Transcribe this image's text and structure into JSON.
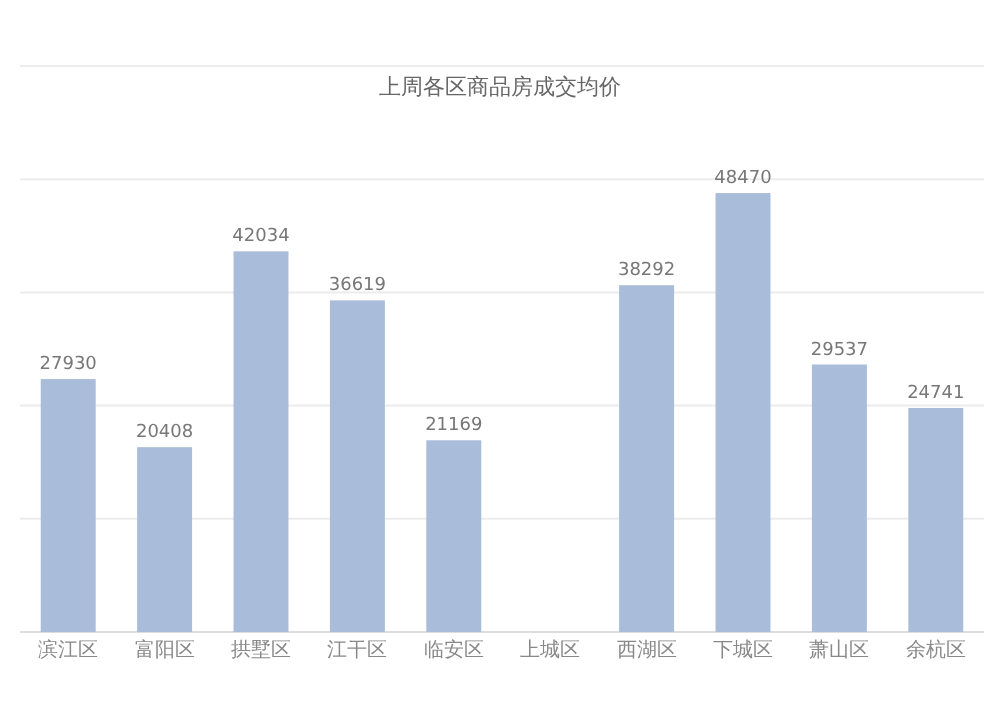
{
  "chart_data": {
    "type": "bar",
    "title": "上周各区商品房成交均价",
    "categories": [
      "滨江区",
      "富阳区",
      "拱墅区",
      "江干区",
      "临安区",
      "上城区",
      "西湖区",
      "下城区",
      "萧山区",
      "余杭区"
    ],
    "values": [
      27930,
      20408,
      42034,
      36619,
      21169,
      null,
      38292,
      48470,
      29537,
      24741
    ],
    "color": "#a9bcd9",
    "ylim": [
      0,
      62500
    ],
    "yticks": [
      {
        "value": 0,
        "label": null
      },
      {
        "value": 12500,
        "label": null
      },
      {
        "value": 25000,
        "label": null
      },
      {
        "value": 37500,
        "label": null
      },
      {
        "value": 50000,
        "label": null
      },
      {
        "value": 62500,
        "label": null
      }
    ],
    "tick_labels": "x",
    "grid": "y",
    "data_labels": true
  }
}
